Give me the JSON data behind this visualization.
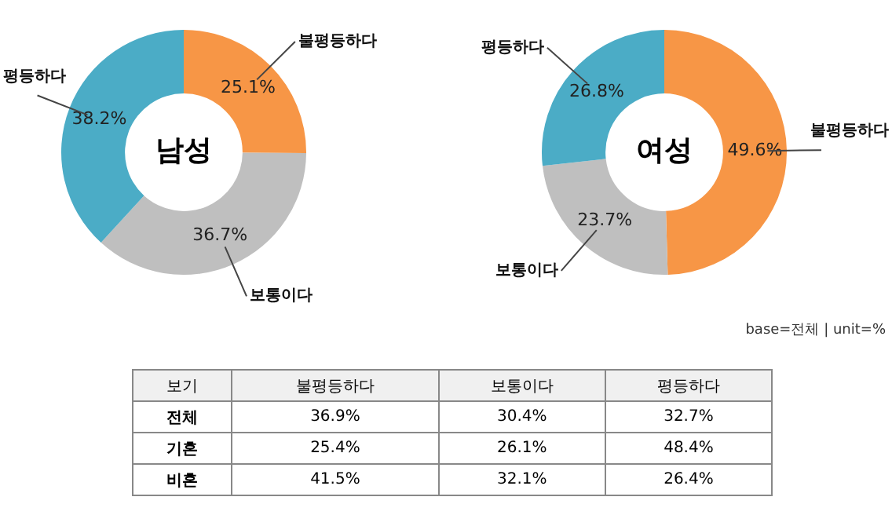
{
  "chart_data": [
    {
      "type": "donut",
      "title": "남성",
      "categories": [
        "불평등하다",
        "보통이다",
        "평등하다"
      ],
      "values": [
        25.1,
        36.7,
        38.2
      ],
      "value_labels": [
        "25.1%",
        "36.7%",
        "38.2%"
      ],
      "colors": [
        "#f79646",
        "#bfbfbf",
        "#4bacc6"
      ],
      "legend": false
    },
    {
      "type": "donut",
      "title": "여성",
      "categories": [
        "불평등하다",
        "보통이다",
        "평등하다"
      ],
      "values": [
        49.6,
        23.7,
        26.8
      ],
      "value_labels": [
        "49.6%",
        "23.7%",
        "26.8%"
      ],
      "colors": [
        "#f79646",
        "#bfbfbf",
        "#4bacc6"
      ],
      "legend": false,
      "annotations": [
        "base=전체 | unit=%"
      ]
    },
    {
      "type": "heatmap",
      "ylabel": "보기",
      "categories": [
        "불평등하다",
        "보통이다",
        "평등하다"
      ],
      "y_categories": [
        "전체",
        "기혼",
        "비혼"
      ],
      "cells": [
        [
          36.9,
          30.4,
          32.7
        ],
        [
          25.4,
          26.1,
          48.4
        ],
        [
          41.5,
          32.1,
          26.4
        ]
      ],
      "cell_labels": [
        [
          "36.9%",
          "30.4%",
          "32.7%"
        ],
        [
          "25.4%",
          "26.1%",
          "48.4%"
        ],
        [
          "41.5%",
          "32.1%",
          "26.4%"
        ]
      ]
    }
  ]
}
